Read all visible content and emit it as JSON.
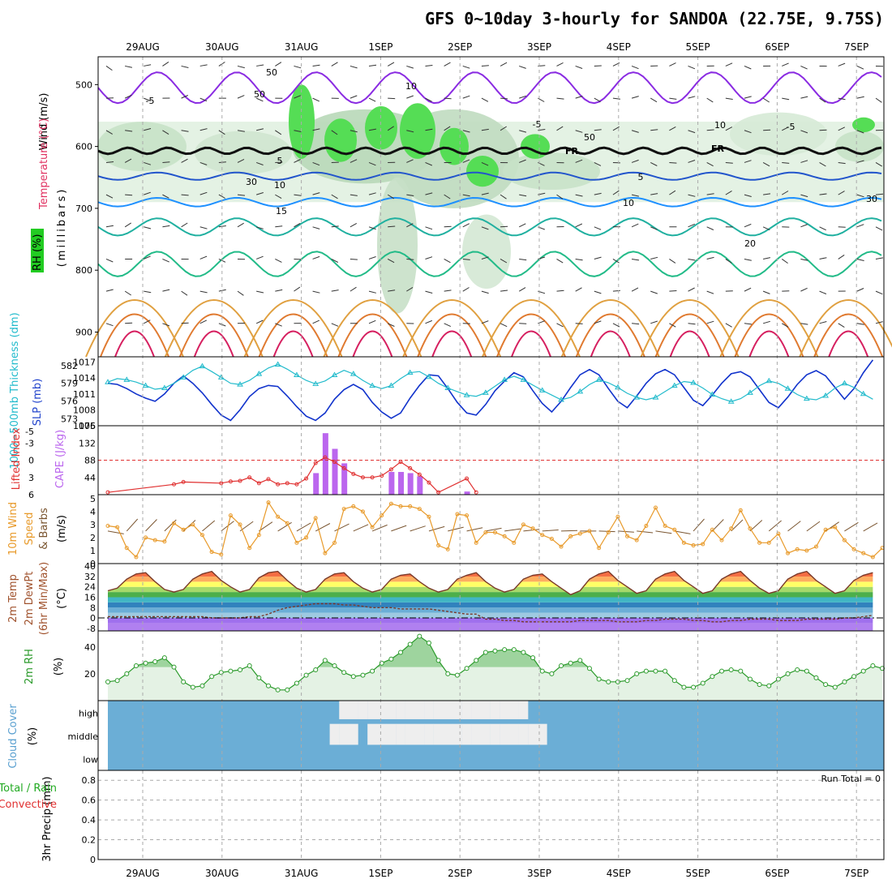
{
  "title": "GFS 0~10day 3-hourly for SANDOA (22.75E, 9.75S)",
  "dates": [
    "29AUG",
    "30AUG",
    "31AUG",
    "1SEP",
    "2SEP",
    "3SEP",
    "4SEP",
    "5SEP",
    "6SEP",
    "7SEP"
  ],
  "panel1": {
    "ylabel_units": "(millibars)",
    "label_wind": "Wind (m/s)",
    "label_temp": "Temperature (°C)",
    "label_rh": "RH (%)",
    "ticks": [
      "500",
      "600",
      "700",
      "800",
      "900"
    ],
    "contour_labels": [
      "-5",
      "-5",
      "-5",
      "5",
      "5",
      "10",
      "10",
      "15",
      "20",
      "FR",
      "FR",
      "50",
      "10",
      "10",
      "50",
      "30",
      "50",
      "30"
    ]
  },
  "panel2": {
    "label_thick": "1000~500mb Thickness (dm)",
    "label_slp": "SLP (mb)",
    "left_ticks": [
      "582",
      "579",
      "576",
      "573"
    ],
    "right_ticks": [
      "1017",
      "1014",
      "1011",
      "1008",
      "1005"
    ]
  },
  "panel3": {
    "label_li": "Lifted Index",
    "label_cape": "CAPE (J/kg)",
    "left_ticks": [
      "-5",
      "-3",
      "0",
      "3",
      "6"
    ],
    "right_ticks": [
      "176",
      "132",
      "88",
      "44"
    ]
  },
  "panel4": {
    "label_a": "10m Wind",
    "label_b": "Speed",
    "label_c": "& Barbs",
    "units": "(m/s)",
    "ticks": [
      "5",
      "4",
      "3",
      "2",
      "1",
      "0"
    ]
  },
  "panel5": {
    "label_a": "2m Temp",
    "label_b": "2m DewPt",
    "label_c": "(6hr Min/Max)",
    "units": "(°C)",
    "ticks": [
      "40",
      "32",
      "24",
      "16",
      "8",
      "0",
      "-8"
    ]
  },
  "panel6": {
    "label": "2m RH",
    "units": "(%)",
    "ticks": [
      "40",
      "20"
    ]
  },
  "panel7": {
    "label": "Cloud Cover",
    "units": "(%)",
    "levels": [
      "high",
      "middle",
      "low"
    ]
  },
  "panel8": {
    "label_a": "3hr Precip (mm)",
    "label_b": "Total / Rain",
    "label_c": "Convective",
    "run_total": "Run Total = 0",
    "ticks": [
      "0.8",
      "0.6",
      "0.4",
      "0.2",
      "0"
    ]
  },
  "colors": {
    "thickness": "#22bbcc",
    "slp": "#1133cc",
    "lifted_index": "#e03030",
    "cape": "#bb66ee",
    "wind_speed": "#e89a2a",
    "barb": "#7a5530",
    "rh_fill": "#9ed49e",
    "rh_line": "#2a9a2a",
    "cloud": "#6baed6",
    "cloud_gap": "#eeeeee",
    "temp_line": "#7a3a2a",
    "dewpt_line": "#7a3a2a"
  },
  "chart_data": [
    {
      "type": "line",
      "panel": "thickness_slp",
      "x_step_hours": 3,
      "series": [
        {
          "name": "1000~500mb Thickness (dm)",
          "axis": "left",
          "values": [
            579.2,
            579.8,
            579.6,
            579.2,
            578.6,
            578.0,
            578.2,
            579.0,
            580.0,
            581.2,
            581.9,
            581.0,
            580.0,
            579.0,
            578.8,
            579.5,
            580.6,
            581.6,
            582.2,
            581.4,
            580.4,
            579.5,
            578.9,
            579.4,
            580.4,
            581.2,
            580.6,
            579.5,
            578.6,
            578.1,
            578.6,
            579.8,
            580.8,
            581.0,
            580.1,
            579.0,
            578.2,
            577.6,
            577.0,
            576.8,
            577.4,
            578.5,
            579.6,
            580.2,
            579.6,
            578.7,
            577.8,
            577.0,
            576.2,
            576.6,
            577.6,
            578.8,
            579.6,
            579.1,
            578.3,
            577.3,
            576.6,
            576.2,
            576.6,
            577.6,
            578.6,
            579.3,
            579.1,
            578.2,
            577.1,
            576.4,
            575.9,
            576.4,
            577.4,
            578.6,
            579.4,
            579.0,
            578.1,
            577.1,
            576.4,
            576.2,
            576.9,
            578.2,
            579.0,
            578.3,
            577.2,
            576.3
          ]
        },
        {
          "name": "SLP (mb)",
          "axis": "right",
          "values": [
            1013,
            1012.8,
            1012.0,
            1011.0,
            1010.2,
            1009.6,
            1011.0,
            1013.0,
            1014.4,
            1013.0,
            1011.2,
            1009.0,
            1007.0,
            1006.0,
            1008.0,
            1010.5,
            1012.0,
            1012.6,
            1012.4,
            1010.6,
            1008.6,
            1006.8,
            1006.0,
            1007.4,
            1010.0,
            1011.8,
            1012.8,
            1011.8,
            1009.4,
            1007.6,
            1006.4,
            1007.4,
            1010.2,
            1012.6,
            1014.6,
            1014.4,
            1012.0,
            1009.4,
            1007.4,
            1007.0,
            1009.0,
            1011.6,
            1013.4,
            1015.0,
            1014.2,
            1011.6,
            1009.2,
            1007.6,
            1009.6,
            1012.2,
            1014.6,
            1015.6,
            1014.6,
            1012.0,
            1009.6,
            1008.4,
            1010.6,
            1013.0,
            1014.8,
            1015.6,
            1014.6,
            1012.2,
            1009.8,
            1008.8,
            1010.8,
            1013.0,
            1014.8,
            1015.2,
            1014.2,
            1011.8,
            1009.4,
            1008.4,
            1010.4,
            1012.8,
            1014.6,
            1015.4,
            1014.4,
            1012.2,
            1010.0,
            1012.0,
            1015.0,
            1017.4
          ]
        }
      ]
    },
    {
      "type": "bar",
      "panel": "cape_li",
      "cape_bars": [
        {
          "step": 22,
          "value": 55
        },
        {
          "step": 23,
          "value": 157
        },
        {
          "step": 24,
          "value": 117
        },
        {
          "step": 25,
          "value": 80
        },
        {
          "step": 30,
          "value": 58
        },
        {
          "step": 31,
          "value": 58
        },
        {
          "step": 32,
          "value": 55
        },
        {
          "step": 33,
          "value": 47
        },
        {
          "step": 38,
          "value": 8
        }
      ],
      "lifted_index": [
        {
          "step": 0,
          "value": 5.6
        },
        {
          "step": 7,
          "value": 4.2
        },
        {
          "step": 8,
          "value": 3.8
        },
        {
          "step": 12,
          "value": 4.0
        },
        {
          "step": 13,
          "value": 3.7
        },
        {
          "step": 14,
          "value": 3.6
        },
        {
          "step": 15,
          "value": 3.0
        },
        {
          "step": 16,
          "value": 4.0
        },
        {
          "step": 17,
          "value": 3.3
        },
        {
          "step": 18,
          "value": 4.2
        },
        {
          "step": 19,
          "value": 4.0
        },
        {
          "step": 20,
          "value": 4.2
        },
        {
          "step": 21,
          "value": 3.2
        },
        {
          "step": 22,
          "value": 0.5
        },
        {
          "step": 23,
          "value": -0.5
        },
        {
          "step": 24,
          "value": 0.3
        },
        {
          "step": 25,
          "value": 1.4
        },
        {
          "step": 26,
          "value": 2.4
        },
        {
          "step": 27,
          "value": 3.0
        },
        {
          "step": 28,
          "value": 3.0
        },
        {
          "step": 29,
          "value": 2.7
        },
        {
          "step": 30,
          "value": 1.6
        },
        {
          "step": 31,
          "value": 0.3
        },
        {
          "step": 32,
          "value": 1.4
        },
        {
          "step": 33,
          "value": 2.5
        },
        {
          "step": 34,
          "value": 3.9
        },
        {
          "step": 35,
          "value": 5.6
        },
        {
          "step": 38,
          "value": 3.2
        },
        {
          "step": 39,
          "value": 5.6
        }
      ],
      "li_range": [
        6,
        -6
      ],
      "cape_range": [
        0,
        176
      ]
    },
    {
      "type": "line",
      "panel": "wind10m",
      "ylim": [
        0,
        5
      ],
      "series": [
        {
          "name": "10m Wind Speed",
          "values": [
            2.9,
            2.8,
            1.2,
            0.5,
            2.0,
            1.8,
            1.7,
            3.1,
            2.6,
            3.0,
            2.2,
            0.9,
            0.7,
            3.7,
            3.0,
            1.2,
            2.2,
            4.7,
            3.6,
            3.1,
            1.6,
            2.0,
            3.5,
            0.8,
            1.6,
            4.2,
            4.4,
            4.0,
            2.8,
            3.7,
            4.6,
            4.4,
            4.4,
            4.2,
            3.6,
            1.4,
            1.1,
            3.8,
            3.7,
            1.6,
            2.4,
            2.4,
            2.1,
            1.6,
            3.0,
            2.7,
            2.2,
            1.9,
            1.3,
            2.1,
            2.3,
            2.5,
            1.2,
            2.4,
            3.6,
            2.1,
            1.8,
            2.9,
            4.3,
            2.9,
            2.6,
            1.6,
            1.4,
            1.5,
            2.6,
            1.8,
            2.7,
            4.1,
            2.7,
            1.6,
            1.6,
            2.3,
            0.8,
            1.1,
            1.0,
            1.3,
            2.6,
            2.8,
            1.8,
            1.1,
            0.8,
            0.5,
            1.2
          ]
        }
      ]
    },
    {
      "type": "line",
      "panel": "temp2m",
      "ylim": [
        -8,
        40
      ],
      "series": [
        {
          "name": "2m Temp",
          "values": [
            21,
            23,
            30,
            34,
            35,
            28,
            22,
            20,
            22,
            30,
            34,
            36,
            29,
            24,
            20,
            22,
            31,
            35,
            36,
            29,
            23,
            20,
            22,
            30,
            34,
            35,
            28,
            23,
            20,
            22,
            30,
            33,
            34,
            28,
            23,
            20,
            22,
            30,
            33,
            35,
            28,
            23,
            20,
            22,
            30,
            33,
            34,
            28,
            23,
            18,
            21,
            30,
            34,
            36,
            29,
            24,
            19,
            21,
            30,
            34,
            36,
            29,
            24,
            19,
            21,
            30,
            34,
            36,
            29,
            23,
            19,
            21,
            30,
            34,
            36,
            29,
            24,
            19,
            21,
            29,
            33,
            35
          ]
        },
        {
          "name": "2m DewPt",
          "values": [
            1,
            1,
            1,
            1,
            1,
            1,
            1,
            1,
            1,
            1,
            1,
            0,
            0,
            0,
            0,
            1,
            1,
            3,
            6,
            8,
            9,
            10,
            11,
            11,
            11,
            10,
            10,
            9,
            8,
            8,
            8,
            7,
            7,
            7,
            7,
            6,
            5,
            4,
            3,
            3,
            -1,
            -1,
            -2,
            -2,
            -3,
            -3,
            -3,
            -3,
            -3,
            -3,
            -2,
            -2,
            -2,
            -2,
            -3,
            -3,
            -3,
            -2,
            -2,
            -1,
            -1,
            -1,
            -2,
            -2,
            -3,
            -3,
            -2,
            -2,
            -1,
            -1,
            -1,
            -2,
            -2,
            -2,
            -1,
            -1,
            -1,
            -1,
            0,
            0,
            1,
            2
          ]
        }
      ]
    },
    {
      "type": "area",
      "panel": "rh2m",
      "ylim": [
        0,
        50
      ],
      "series": [
        {
          "name": "2m RH",
          "values": [
            14,
            15,
            20,
            26,
            28,
            29,
            32,
            25,
            14,
            10,
            11,
            18,
            21,
            22,
            23,
            26,
            17,
            11,
            8,
            8,
            13,
            19,
            23,
            30,
            26,
            21,
            18,
            19,
            22,
            28,
            31,
            36,
            42,
            48,
            43,
            30,
            20,
            19,
            24,
            30,
            36,
            37,
            38,
            38,
            36,
            32,
            22,
            20,
            26,
            28,
            30,
            24,
            16,
            14,
            14,
            15,
            20,
            22,
            22,
            22,
            15,
            10,
            10,
            13,
            18,
            22,
            23,
            22,
            16,
            12,
            11,
            16,
            20,
            23,
            22,
            17,
            12,
            10,
            14,
            18,
            22,
            26,
            24
          ]
        }
      ]
    },
    {
      "type": "area",
      "panel": "cloud_cover",
      "levels": [
        "high",
        "middle",
        "low"
      ],
      "high_clear_steps": [
        25,
        26,
        27,
        28,
        29,
        30,
        31,
        32,
        33,
        34,
        35,
        36,
        37,
        38,
        39,
        40,
        41,
        42,
        43,
        44
      ],
      "middle_clear_steps": [
        24,
        25,
        26,
        28,
        29,
        30,
        31,
        32,
        33,
        34,
        35,
        36,
        37,
        38,
        39,
        40,
        41,
        42,
        43,
        44,
        45,
        46
      ]
    },
    {
      "type": "bar",
      "panel": "precip3hr",
      "ylim": [
        0,
        0.9
      ],
      "values": [],
      "run_total": 0
    }
  ]
}
